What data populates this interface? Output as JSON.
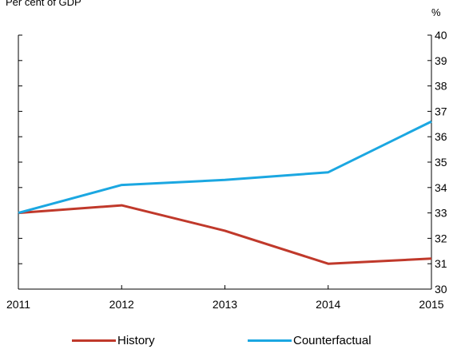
{
  "chart_data": {
    "type": "line",
    "subtitle": "Per cent of GDP",
    "ylabel_right": "%",
    "x": [
      2011,
      2012,
      2013,
      2014,
      2015
    ],
    "xticks": [
      "2011",
      "2012",
      "2013",
      "2014",
      "2015"
    ],
    "ylim": [
      30,
      40
    ],
    "yticks": [
      "30",
      "31",
      "32",
      "33",
      "34",
      "35",
      "36",
      "37",
      "38",
      "39",
      "40"
    ],
    "series": [
      {
        "name": "History",
        "color": "#c0392b",
        "values": [
          33.0,
          33.3,
          32.3,
          31.0,
          31.2
        ]
      },
      {
        "name": "Counterfactual",
        "color": "#1ba7e1",
        "values": [
          33.0,
          34.1,
          34.3,
          34.6,
          36.6
        ]
      }
    ],
    "grid": false,
    "legend_position": "bottom"
  }
}
